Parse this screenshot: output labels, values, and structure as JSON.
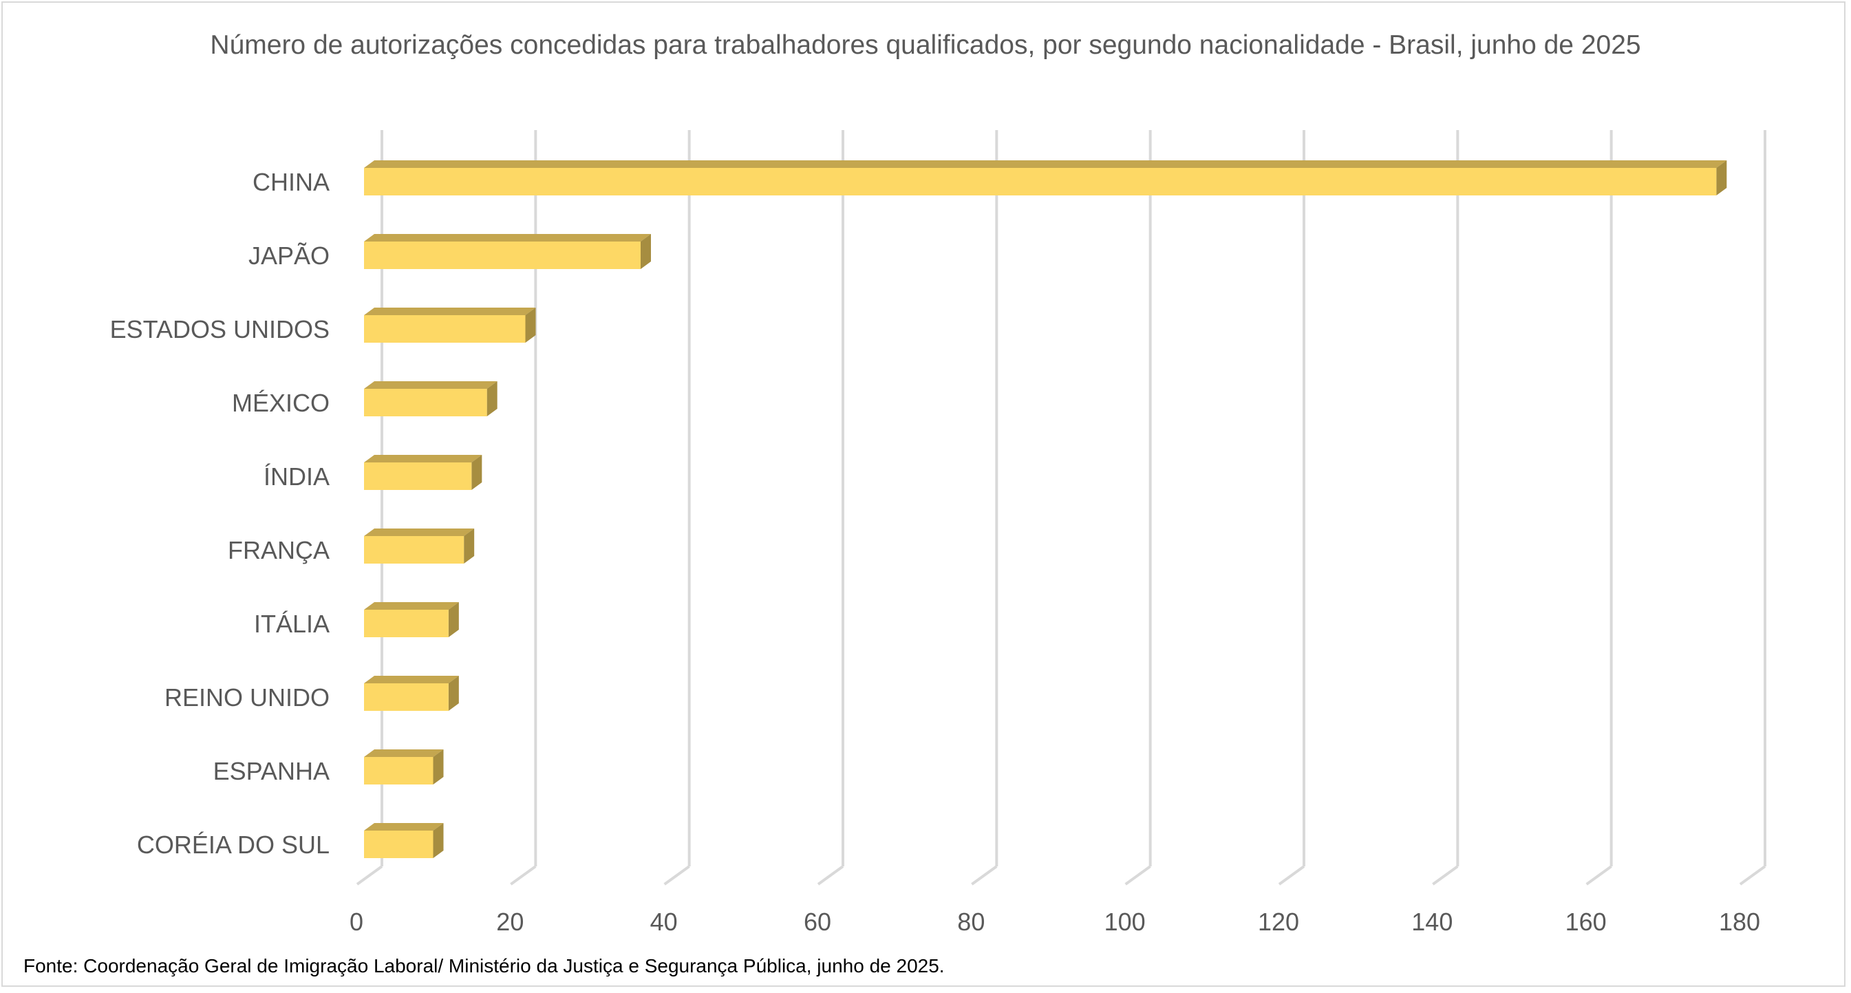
{
  "chart_data": {
    "type": "bar",
    "orientation": "horizontal",
    "style": "3d",
    "title": "Número de autorizações concedidas para trabalhadores qualificados, por segundo nacionalidade - Brasil, junho de 2025",
    "categories": [
      "CHINA",
      "JAPÃO",
      "ESTADOS UNIDOS",
      "MÉXICO",
      "ÍNDIA",
      "FRANÇA",
      "ITÁLIA",
      "REINO UNIDO",
      "ESPANHA",
      "CORÉIA DO SUL"
    ],
    "values": [
      176,
      36,
      21,
      16,
      14,
      13,
      11,
      11,
      9,
      9
    ],
    "xlim": [
      0,
      180
    ],
    "xticks": [
      "0",
      "20",
      "40",
      "60",
      "80",
      "100",
      "120",
      "140",
      "160",
      "180"
    ],
    "xlabel": "",
    "ylabel": "",
    "grid": "vertical",
    "legend": "none",
    "colors": {
      "front": "#FDD865",
      "top": "#C4A64F",
      "side": "#A68D40",
      "grid": "#D9D9D9"
    }
  },
  "footer": "Fonte: Coordenação Geral de Imigração Laboral/ Ministério da Justiça e Segurança Pública,  junho de 2025."
}
